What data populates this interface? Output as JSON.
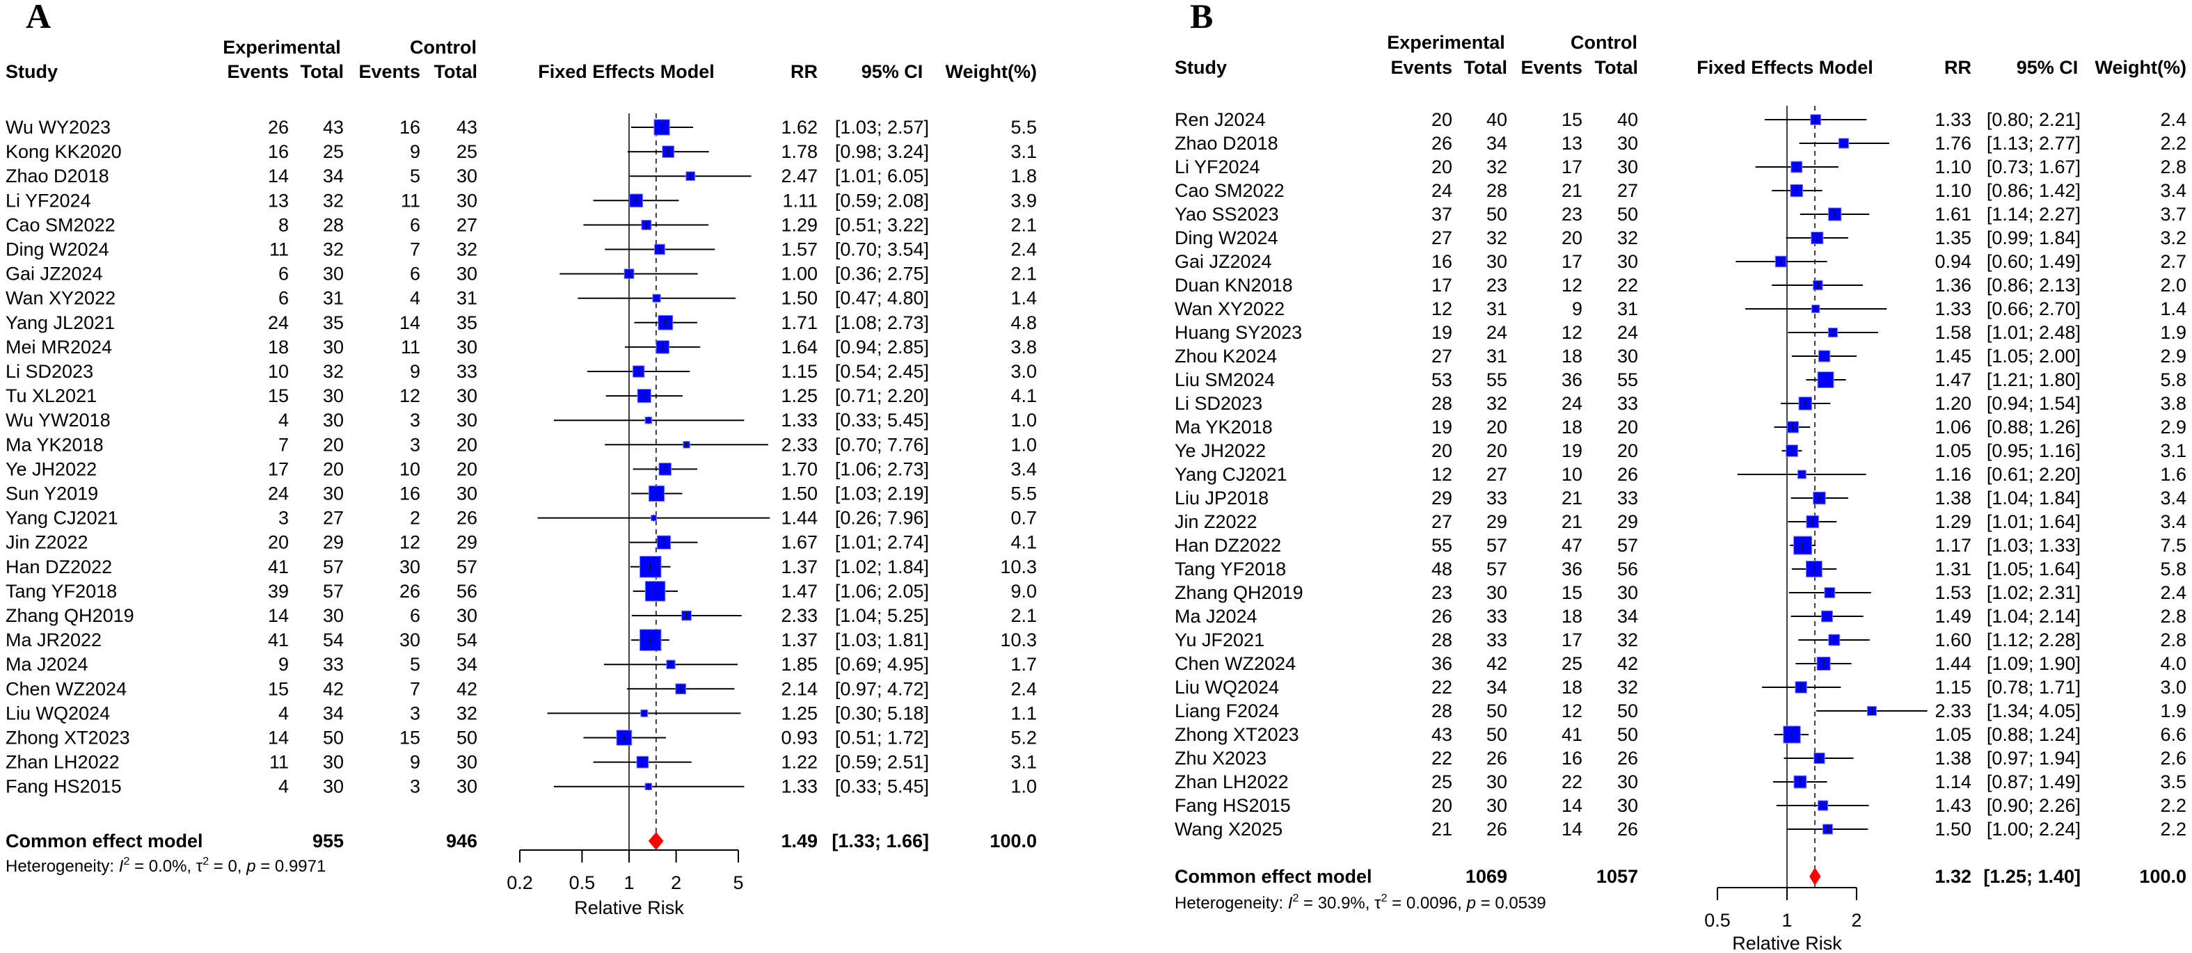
{
  "colors": {
    "square": "#0000ff",
    "square_edge": "#8080ff",
    "diamond": "#ff0000",
    "line": "#000000"
  },
  "chart_data": [
    {
      "type": "forest",
      "panel_label": "A",
      "headers": {
        "study": "Study",
        "experimental": "Experimental",
        "control": "Control",
        "events": "Events",
        "total": "Total",
        "model": "Fixed Effects Model",
        "rr": "RR",
        "ci": "95% CI",
        "weight": "Weight(%)"
      },
      "xlabel": "Relative Risk",
      "xscale": "log",
      "xlim": [
        0.2,
        5
      ],
      "ticks": [
        "0.2",
        "0.5",
        "1",
        "2",
        "5"
      ],
      "studies": [
        {
          "study": "Wu WY2023",
          "ee": "26",
          "et": "43",
          "ce": "16",
          "ct": "43",
          "rr": "1.62",
          "lo": "1.03",
          "hi": "2.57",
          "w": "5.5"
        },
        {
          "study": "Kong KK2020",
          "ee": "16",
          "et": "25",
          "ce": "9",
          "ct": "25",
          "rr": "1.78",
          "lo": "0.98",
          "hi": "3.24",
          "w": "3.1"
        },
        {
          "study": "Zhao D2018",
          "ee": "14",
          "et": "34",
          "ce": "5",
          "ct": "30",
          "rr": "2.47",
          "lo": "1.01",
          "hi": "6.05",
          "w": "1.8"
        },
        {
          "study": "Li YF2024",
          "ee": "13",
          "et": "32",
          "ce": "11",
          "ct": "30",
          "rr": "1.11",
          "lo": "0.59",
          "hi": "2.08",
          "w": "3.9"
        },
        {
          "study": "Cao SM2022",
          "ee": "8",
          "et": "28",
          "ce": "6",
          "ct": "27",
          "rr": "1.29",
          "lo": "0.51",
          "hi": "3.22",
          "w": "2.1"
        },
        {
          "study": "Ding W2024",
          "ee": "11",
          "et": "32",
          "ce": "7",
          "ct": "32",
          "rr": "1.57",
          "lo": "0.70",
          "hi": "3.54",
          "w": "2.4"
        },
        {
          "study": "Gai JZ2024",
          "ee": "6",
          "et": "30",
          "ce": "6",
          "ct": "30",
          "rr": "1.00",
          "lo": "0.36",
          "hi": "2.75",
          "w": "2.1"
        },
        {
          "study": "Wan XY2022",
          "ee": "6",
          "et": "31",
          "ce": "4",
          "ct": "31",
          "rr": "1.50",
          "lo": "0.47",
          "hi": "4.80",
          "w": "1.4"
        },
        {
          "study": "Yang JL2021",
          "ee": "24",
          "et": "35",
          "ce": "14",
          "ct": "35",
          "rr": "1.71",
          "lo": "1.08",
          "hi": "2.73",
          "w": "4.8"
        },
        {
          "study": "Mei MR2024",
          "ee": "18",
          "et": "30",
          "ce": "11",
          "ct": "30",
          "rr": "1.64",
          "lo": "0.94",
          "hi": "2.85",
          "w": "3.8"
        },
        {
          "study": "Li SD2023",
          "ee": "10",
          "et": "32",
          "ce": "9",
          "ct": "33",
          "rr": "1.15",
          "lo": "0.54",
          "hi": "2.45",
          "w": "3.0"
        },
        {
          "study": "Tu XL2021",
          "ee": "15",
          "et": "30",
          "ce": "12",
          "ct": "30",
          "rr": "1.25",
          "lo": "0.71",
          "hi": "2.20",
          "w": "4.1"
        },
        {
          "study": "Wu YW2018",
          "ee": "4",
          "et": "30",
          "ce": "3",
          "ct": "30",
          "rr": "1.33",
          "lo": "0.33",
          "hi": "5.45",
          "w": "1.0"
        },
        {
          "study": "Ma YK2018",
          "ee": "7",
          "et": "20",
          "ce": "3",
          "ct": "20",
          "rr": "2.33",
          "lo": "0.70",
          "hi": "7.76",
          "w": "1.0"
        },
        {
          "study": "Ye JH2022",
          "ee": "17",
          "et": "20",
          "ce": "10",
          "ct": "20",
          "rr": "1.70",
          "lo": "1.06",
          "hi": "2.73",
          "w": "3.4"
        },
        {
          "study": "Sun Y2019",
          "ee": "24",
          "et": "30",
          "ce": "16",
          "ct": "30",
          "rr": "1.50",
          "lo": "1.03",
          "hi": "2.19",
          "w": "5.5"
        },
        {
          "study": "Yang CJ2021",
          "ee": "3",
          "et": "27",
          "ce": "2",
          "ct": "26",
          "rr": "1.44",
          "lo": "0.26",
          "hi": "7.96",
          "w": "0.7"
        },
        {
          "study": "Jin Z2022",
          "ee": "20",
          "et": "29",
          "ce": "12",
          "ct": "29",
          "rr": "1.67",
          "lo": "1.01",
          "hi": "2.74",
          "w": "4.1"
        },
        {
          "study": "Han DZ2022",
          "ee": "41",
          "et": "57",
          "ce": "30",
          "ct": "57",
          "rr": "1.37",
          "lo": "1.02",
          "hi": "1.84",
          "w": "10.3"
        },
        {
          "study": "Tang YF2018",
          "ee": "39",
          "et": "57",
          "ce": "26",
          "ct": "56",
          "rr": "1.47",
          "lo": "1.06",
          "hi": "2.05",
          "w": "9.0"
        },
        {
          "study": "Zhang QH2019",
          "ee": "14",
          "et": "30",
          "ce": "6",
          "ct": "30",
          "rr": "2.33",
          "lo": "1.04",
          "hi": "5.25",
          "w": "2.1"
        },
        {
          "study": "Ma JR2022",
          "ee": "41",
          "et": "54",
          "ce": "30",
          "ct": "54",
          "rr": "1.37",
          "lo": "1.03",
          "hi": "1.81",
          "w": "10.3"
        },
        {
          "study": "Ma J2024",
          "ee": "9",
          "et": "33",
          "ce": "5",
          "ct": "34",
          "rr": "1.85",
          "lo": "0.69",
          "hi": "4.95",
          "w": "1.7"
        },
        {
          "study": "Chen WZ2024",
          "ee": "15",
          "et": "42",
          "ce": "7",
          "ct": "42",
          "rr": "2.14",
          "lo": "0.97",
          "hi": "4.72",
          "w": "2.4"
        },
        {
          "study": "Liu WQ2024",
          "ee": "4",
          "et": "34",
          "ce": "3",
          "ct": "32",
          "rr": "1.25",
          "lo": "0.30",
          "hi": "5.18",
          "w": "1.1"
        },
        {
          "study": "Zhong XT2023",
          "ee": "14",
          "et": "50",
          "ce": "15",
          "ct": "50",
          "rr": "0.93",
          "lo": "0.51",
          "hi": "1.72",
          "w": "5.2"
        },
        {
          "study": "Zhan LH2022",
          "ee": "11",
          "et": "30",
          "ce": "9",
          "ct": "30",
          "rr": "1.22",
          "lo": "0.59",
          "hi": "2.51",
          "w": "3.1"
        },
        {
          "study": "Fang HS2015",
          "ee": "4",
          "et": "30",
          "ce": "3",
          "ct": "30",
          "rr": "1.33",
          "lo": "0.33",
          "hi": "5.45",
          "w": "1.0"
        }
      ],
      "pooled": {
        "label": "Common effect model",
        "et": "955",
        "ct": "946",
        "rr": "1.49",
        "lo": "1.33",
        "hi": "1.66",
        "w": "100.0"
      },
      "heterogeneity": {
        "label": "Heterogeneity:",
        "i2": "0.0%",
        "tau2": "0",
        "p": "0.9971"
      }
    },
    {
      "type": "forest",
      "panel_label": "B",
      "headers": {
        "study": "Study",
        "experimental": "Experimental",
        "control": "Control",
        "events": "Events",
        "total": "Total",
        "model": "Fixed Effects Model",
        "rr": "RR",
        "ci": "95% CI",
        "weight": "Weight(%)"
      },
      "xlabel": "Relative Risk",
      "xscale": "log",
      "xlim": [
        0.5,
        2
      ],
      "ticks": [
        "0.5",
        "1",
        "2"
      ],
      "studies": [
        {
          "study": "Ren J2024",
          "ee": "20",
          "et": "40",
          "ce": "15",
          "ct": "40",
          "rr": "1.33",
          "lo": "0.80",
          "hi": "2.21",
          "w": "2.4"
        },
        {
          "study": "Zhao D2018",
          "ee": "26",
          "et": "34",
          "ce": "13",
          "ct": "30",
          "rr": "1.76",
          "lo": "1.13",
          "hi": "2.77",
          "w": "2.2"
        },
        {
          "study": "Li YF2024",
          "ee": "20",
          "et": "32",
          "ce": "17",
          "ct": "30",
          "rr": "1.10",
          "lo": "0.73",
          "hi": "1.67",
          "w": "2.8"
        },
        {
          "study": "Cao SM2022",
          "ee": "24",
          "et": "28",
          "ce": "21",
          "ct": "27",
          "rr": "1.10",
          "lo": "0.86",
          "hi": "1.42",
          "w": "3.4"
        },
        {
          "study": "Yao SS2023",
          "ee": "37",
          "et": "50",
          "ce": "23",
          "ct": "50",
          "rr": "1.61",
          "lo": "1.14",
          "hi": "2.27",
          "w": "3.7"
        },
        {
          "study": "Ding W2024",
          "ee": "27",
          "et": "32",
          "ce": "20",
          "ct": "32",
          "rr": "1.35",
          "lo": "0.99",
          "hi": "1.84",
          "w": "3.2"
        },
        {
          "study": "Gai JZ2024",
          "ee": "16",
          "et": "30",
          "ce": "17",
          "ct": "30",
          "rr": "0.94",
          "lo": "0.60",
          "hi": "1.49",
          "w": "2.7"
        },
        {
          "study": "Duan KN2018",
          "ee": "17",
          "et": "23",
          "ce": "12",
          "ct": "22",
          "rr": "1.36",
          "lo": "0.86",
          "hi": "2.13",
          "w": "2.0"
        },
        {
          "study": "Wan XY2022",
          "ee": "12",
          "et": "31",
          "ce": "9",
          "ct": "31",
          "rr": "1.33",
          "lo": "0.66",
          "hi": "2.70",
          "w": "1.4"
        },
        {
          "study": "Huang SY2023",
          "ee": "19",
          "et": "24",
          "ce": "12",
          "ct": "24",
          "rr": "1.58",
          "lo": "1.01",
          "hi": "2.48",
          "w": "1.9"
        },
        {
          "study": "Zhou K2024",
          "ee": "27",
          "et": "31",
          "ce": "18",
          "ct": "30",
          "rr": "1.45",
          "lo": "1.05",
          "hi": "2.00",
          "w": "2.9"
        },
        {
          "study": "Liu SM2024",
          "ee": "53",
          "et": "55",
          "ce": "36",
          "ct": "55",
          "rr": "1.47",
          "lo": "1.21",
          "hi": "1.80",
          "w": "5.8"
        },
        {
          "study": "Li SD2023",
          "ee": "28",
          "et": "32",
          "ce": "24",
          "ct": "33",
          "rr": "1.20",
          "lo": "0.94",
          "hi": "1.54",
          "w": "3.8"
        },
        {
          "study": "Ma YK2018",
          "ee": "19",
          "et": "20",
          "ce": "18",
          "ct": "20",
          "rr": "1.06",
          "lo": "0.88",
          "hi": "1.26",
          "w": "2.9"
        },
        {
          "study": "Ye JH2022",
          "ee": "20",
          "et": "20",
          "ce": "19",
          "ct": "20",
          "rr": "1.05",
          "lo": "0.95",
          "hi": "1.16",
          "w": "3.1"
        },
        {
          "study": "Yang CJ2021",
          "ee": "12",
          "et": "27",
          "ce": "10",
          "ct": "26",
          "rr": "1.16",
          "lo": "0.61",
          "hi": "2.20",
          "w": "1.6"
        },
        {
          "study": "Liu JP2018",
          "ee": "29",
          "et": "33",
          "ce": "21",
          "ct": "33",
          "rr": "1.38",
          "lo": "1.04",
          "hi": "1.84",
          "w": "3.4"
        },
        {
          "study": "Jin Z2022",
          "ee": "27",
          "et": "29",
          "ce": "21",
          "ct": "29",
          "rr": "1.29",
          "lo": "1.01",
          "hi": "1.64",
          "w": "3.4"
        },
        {
          "study": "Han DZ2022",
          "ee": "55",
          "et": "57",
          "ce": "47",
          "ct": "57",
          "rr": "1.17",
          "lo": "1.03",
          "hi": "1.33",
          "w": "7.5"
        },
        {
          "study": "Tang YF2018",
          "ee": "48",
          "et": "57",
          "ce": "36",
          "ct": "56",
          "rr": "1.31",
          "lo": "1.05",
          "hi": "1.64",
          "w": "5.8"
        },
        {
          "study": "Zhang QH2019",
          "ee": "23",
          "et": "30",
          "ce": "15",
          "ct": "30",
          "rr": "1.53",
          "lo": "1.02",
          "hi": "2.31",
          "w": "2.4"
        },
        {
          "study": "Ma J2024",
          "ee": "26",
          "et": "33",
          "ce": "18",
          "ct": "34",
          "rr": "1.49",
          "lo": "1.04",
          "hi": "2.14",
          "w": "2.8"
        },
        {
          "study": "Yu JF2021",
          "ee": "28",
          "et": "33",
          "ce": "17",
          "ct": "32",
          "rr": "1.60",
          "lo": "1.12",
          "hi": "2.28",
          "w": "2.8"
        },
        {
          "study": "Chen WZ2024",
          "ee": "36",
          "et": "42",
          "ce": "25",
          "ct": "42",
          "rr": "1.44",
          "lo": "1.09",
          "hi": "1.90",
          "w": "4.0"
        },
        {
          "study": "Liu WQ2024",
          "ee": "22",
          "et": "34",
          "ce": "18",
          "ct": "32",
          "rr": "1.15",
          "lo": "0.78",
          "hi": "1.71",
          "w": "3.0"
        },
        {
          "study": "Liang F2024",
          "ee": "28",
          "et": "50",
          "ce": "12",
          "ct": "50",
          "rr": "2.33",
          "lo": "1.34",
          "hi": "4.05",
          "w": "1.9"
        },
        {
          "study": "Zhong XT2023",
          "ee": "43",
          "et": "50",
          "ce": "41",
          "ct": "50",
          "rr": "1.05",
          "lo": "0.88",
          "hi": "1.24",
          "w": "6.6"
        },
        {
          "study": "Zhu X2023",
          "ee": "22",
          "et": "26",
          "ce": "16",
          "ct": "26",
          "rr": "1.38",
          "lo": "0.97",
          "hi": "1.94",
          "w": "2.6"
        },
        {
          "study": "Zhan LH2022",
          "ee": "25",
          "et": "30",
          "ce": "22",
          "ct": "30",
          "rr": "1.14",
          "lo": "0.87",
          "hi": "1.49",
          "w": "3.5"
        },
        {
          "study": "Fang HS2015",
          "ee": "20",
          "et": "30",
          "ce": "14",
          "ct": "30",
          "rr": "1.43",
          "lo": "0.90",
          "hi": "2.26",
          "w": "2.2"
        },
        {
          "study": "Wang X2025",
          "ee": "21",
          "et": "26",
          "ce": "14",
          "ct": "26",
          "rr": "1.50",
          "lo": "1.00",
          "hi": "2.24",
          "w": "2.2"
        }
      ],
      "pooled": {
        "label": "Common effect model",
        "et": "1069",
        "ct": "1057",
        "rr": "1.32",
        "lo": "1.25",
        "hi": "1.40",
        "w": "100.0"
      },
      "heterogeneity": {
        "label": "Heterogeneity:",
        "i2": "30.9%",
        "tau2": "0.0096",
        "p": "0.0539"
      }
    }
  ]
}
